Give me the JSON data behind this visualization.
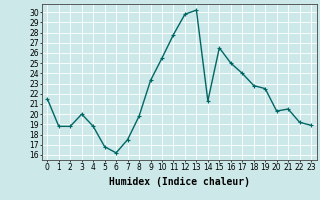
{
  "x": [
    0,
    1,
    2,
    3,
    4,
    5,
    6,
    7,
    8,
    9,
    10,
    11,
    12,
    13,
    14,
    15,
    16,
    17,
    18,
    19,
    20,
    21,
    22,
    23
  ],
  "y": [
    21.5,
    18.8,
    18.8,
    20.0,
    18.8,
    16.8,
    16.2,
    17.5,
    19.8,
    23.3,
    25.5,
    27.8,
    29.8,
    30.2,
    21.3,
    26.5,
    25.0,
    24.0,
    22.8,
    22.5,
    20.3,
    20.5,
    19.2,
    18.9
  ],
  "line_color": "#006666",
  "marker": "+",
  "marker_size": 3,
  "bg_color": "#cce8e8",
  "grid_color": "#ffffff",
  "xlabel": "Humidex (Indice chaleur)",
  "xlabel_fontsize": 7,
  "ylabel_ticks": [
    16,
    17,
    18,
    19,
    20,
    21,
    22,
    23,
    24,
    25,
    26,
    27,
    28,
    29,
    30
  ],
  "xlim": [
    -0.5,
    23.5
  ],
  "ylim": [
    15.5,
    30.8
  ],
  "tick_fontsize": 5.5,
  "linewidth": 1.0
}
